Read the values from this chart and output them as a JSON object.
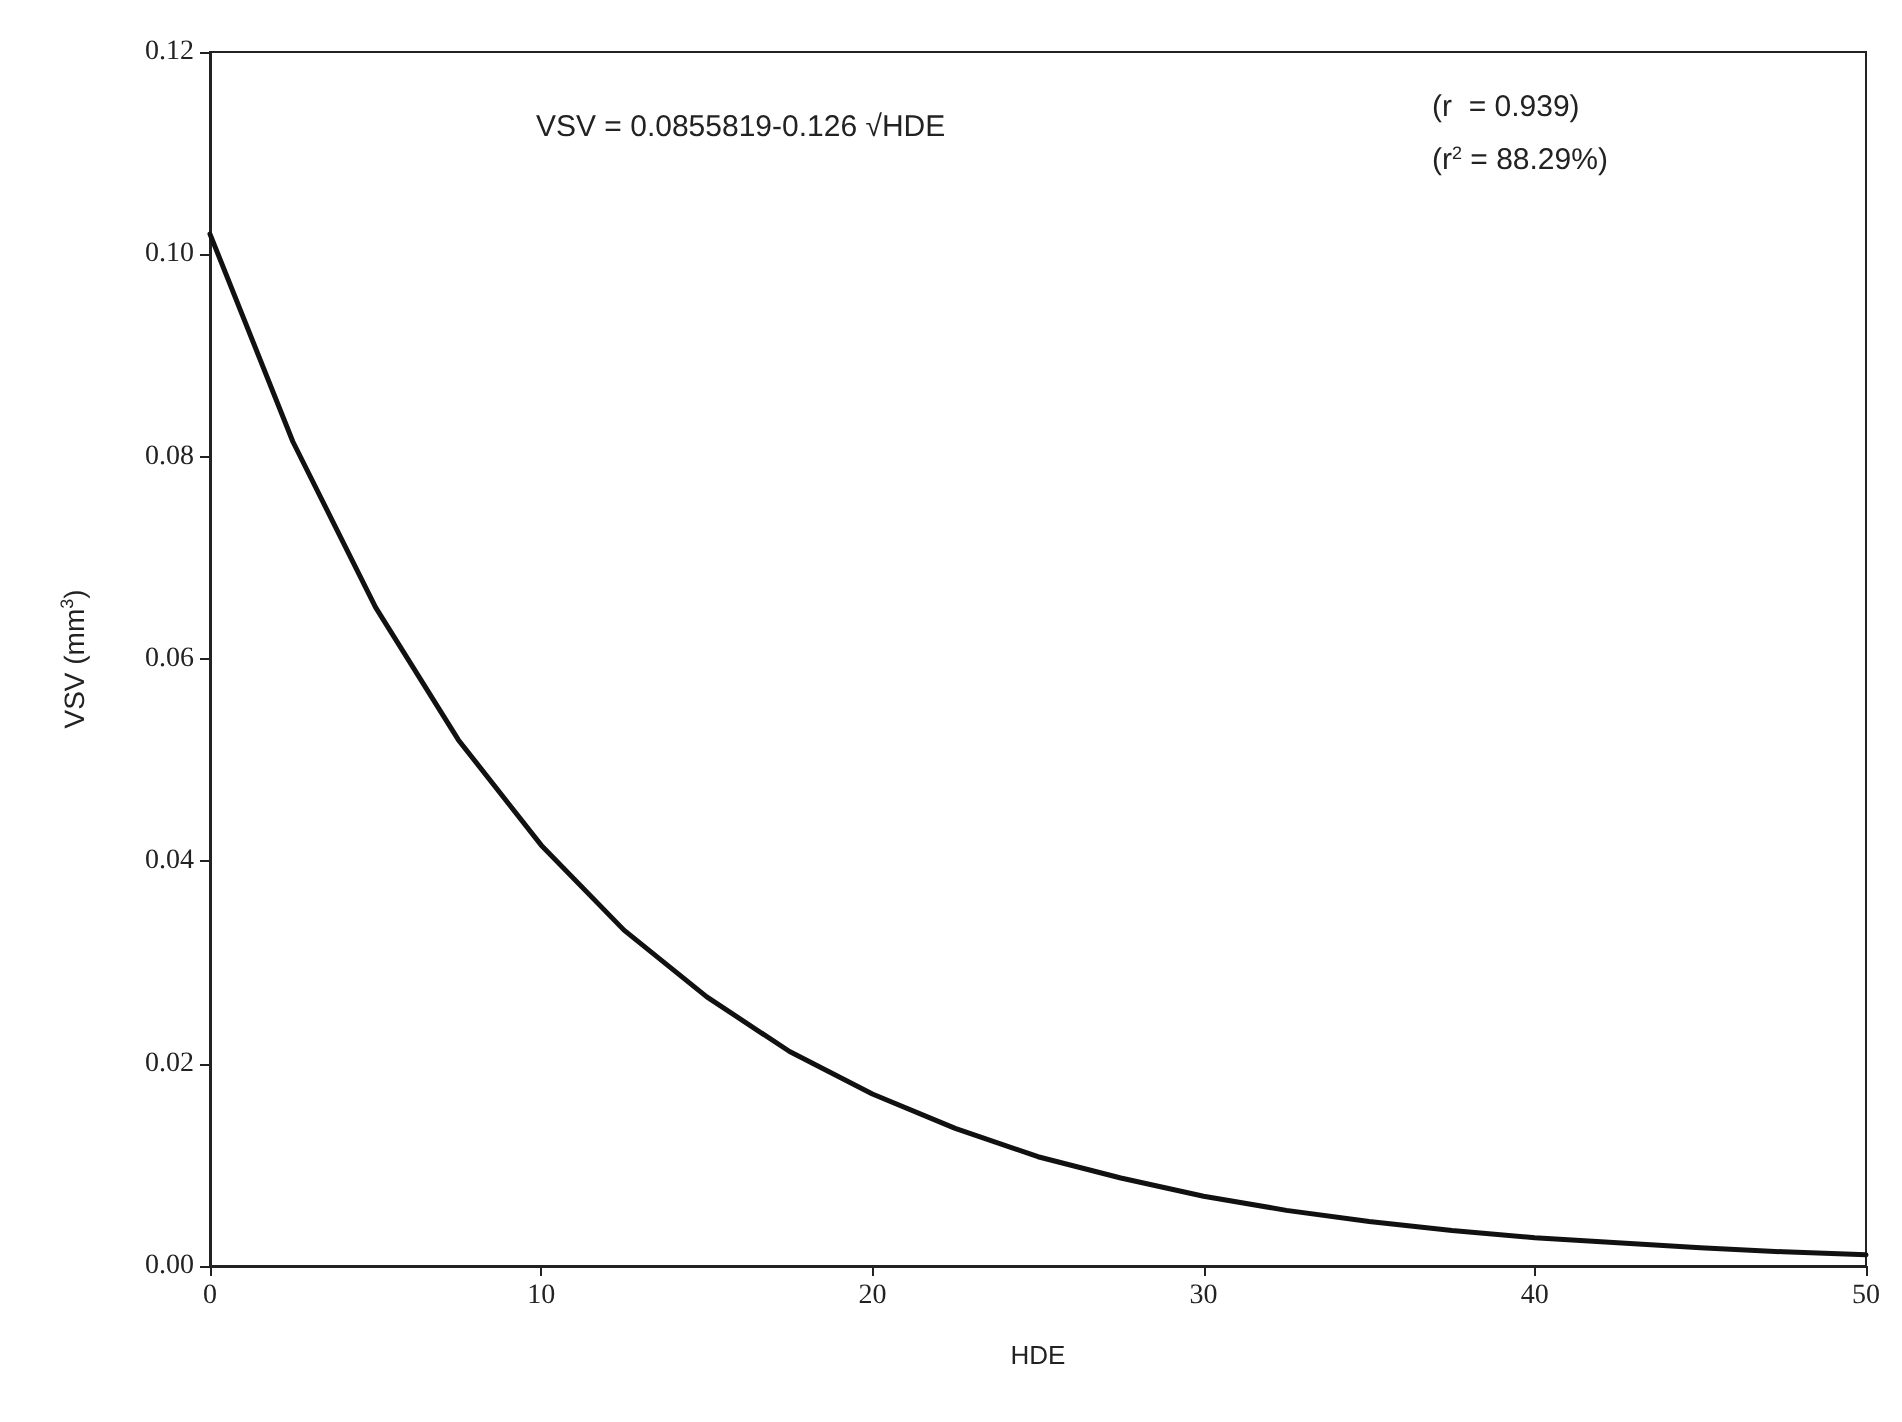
{
  "chart_data": {
    "type": "line",
    "xlabel": "HDE",
    "ylabel": "VSV (mm$^{3}$)",
    "x": [
      0,
      2.5,
      5,
      7.5,
      10,
      12.5,
      15,
      17.5,
      20,
      22.5,
      25,
      27.5,
      30,
      32.5,
      35,
      37.5,
      40,
      42.5,
      45,
      47.5,
      50
    ],
    "series": [
      {
        "color": "#111111",
        "values": [
          0.102,
          0.0815,
          0.0651,
          0.052,
          0.0416,
          0.0332,
          0.0266,
          0.0212,
          0.017,
          0.0136,
          0.0108,
          0.0087,
          0.0069,
          0.0055,
          0.0044,
          0.0035,
          0.0028,
          0.0023,
          0.0018,
          0.0014,
          0.0011
        ]
      }
    ],
    "xlim": [
      0,
      50
    ],
    "xticks": [
      0,
      10,
      20,
      30,
      40,
      50
    ],
    "ylim": [
      0,
      0.12
    ],
    "yticks": [
      {
        "value": 0,
        "label": "0.00"
      },
      {
        "value": 0.02,
        "label": "0.02"
      },
      {
        "value": 0.04,
        "label": "0.04"
      },
      {
        "value": 0.06,
        "label": "0.06"
      },
      {
        "value": 0.08,
        "label": "0.08"
      },
      {
        "value": 0.1,
        "label": "0.10"
      },
      {
        "value": 0.12,
        "label": "0.12"
      }
    ],
    "annotations": [
      "VSV = 0.0855819-0.126 √HDE",
      "(r  = 0.939)",
      "(r$^{2}$ = 88.29%)"
    ],
    "marker": "none",
    "line_style": "solid"
  }
}
